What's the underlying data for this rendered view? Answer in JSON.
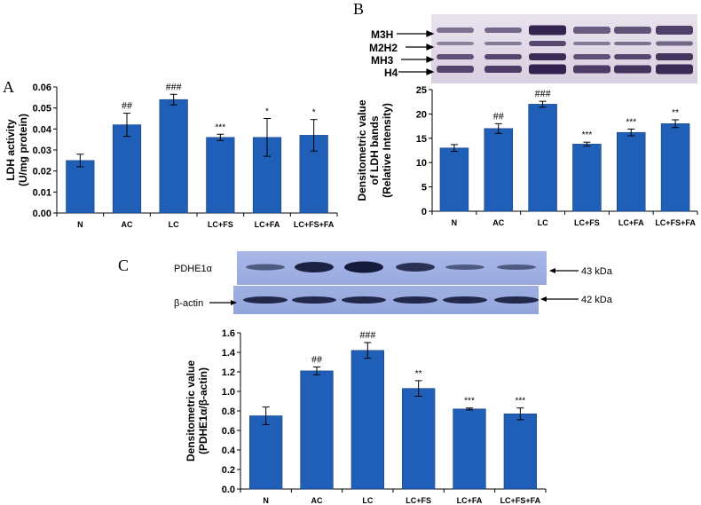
{
  "panel_letters": {
    "a": "A",
    "b": "B",
    "c": "C"
  },
  "colors": {
    "bar": "#1f5fb8",
    "bar_edge": "#173f82",
    "axis": "#000000"
  },
  "blot_b": {
    "bands": [
      "M3H",
      "M2H2",
      "MH3",
      "H4"
    ]
  },
  "blot_c": {
    "label_top": "PDHE1α",
    "label_bottom": "β-actin",
    "kda_top": "43 kDa",
    "kda_bottom": "42 kDa"
  },
  "chart_data": [
    {
      "type": "bar",
      "panel": "A",
      "categories": [
        "N",
        "AC",
        "LC",
        "LC+FS",
        "LC+FA",
        "LC+FS+FA"
      ],
      "values": [
        0.025,
        0.042,
        0.054,
        0.036,
        0.036,
        0.037
      ],
      "errors": [
        0.003,
        0.0055,
        0.0025,
        0.0015,
        0.009,
        0.0075
      ],
      "annotations": [
        "",
        "##",
        "###",
        "***",
        "*",
        "*"
      ],
      "ylabel_line1": "LDH  activity",
      "ylabel_line2": "(U/mg protein)",
      "ylim": [
        0,
        0.06
      ],
      "yticks": [
        "0.00",
        "0.01",
        "0.02",
        "0.03",
        "0.04",
        "0.05",
        "0.06"
      ]
    },
    {
      "type": "bar",
      "panel": "B",
      "categories": [
        "N",
        "AC",
        "LC",
        "LC+FS",
        "LC+FA",
        "LC+FS+FA"
      ],
      "values": [
        13.0,
        17.0,
        22.0,
        13.8,
        16.2,
        18.0
      ],
      "errors": [
        0.7,
        1.0,
        0.6,
        0.4,
        0.7,
        0.8
      ],
      "annotations": [
        "",
        "##",
        "###",
        "***",
        "***",
        "**"
      ],
      "ylabel_line1": "Densitometric value",
      "ylabel_line2": "of LDH bands",
      "ylabel_line3": "(Relative Intensity)",
      "ylim": [
        0,
        25
      ],
      "yticks": [
        "0",
        "5",
        "10",
        "15",
        "20",
        "25"
      ]
    },
    {
      "type": "bar",
      "panel": "C",
      "categories": [
        "N",
        "AC",
        "LC",
        "LC+FS",
        "LC+FA",
        "LC+FS+FA"
      ],
      "values": [
        0.75,
        1.21,
        1.42,
        1.03,
        0.82,
        0.77
      ],
      "errors": [
        0.09,
        0.04,
        0.08,
        0.08,
        0.01,
        0.06
      ],
      "annotations": [
        "",
        "##",
        "###",
        "**",
        "***",
        "***"
      ],
      "ylabel_line1": "Densitometric value",
      "ylabel_line2": "(PDHE1α/β-actin)",
      "ylim": [
        0,
        1.6
      ],
      "yticks": [
        "0.0",
        "0.2",
        "0.4",
        "0.6",
        "0.8",
        "1.0",
        "1.2",
        "1.4",
        "1.6"
      ]
    }
  ]
}
